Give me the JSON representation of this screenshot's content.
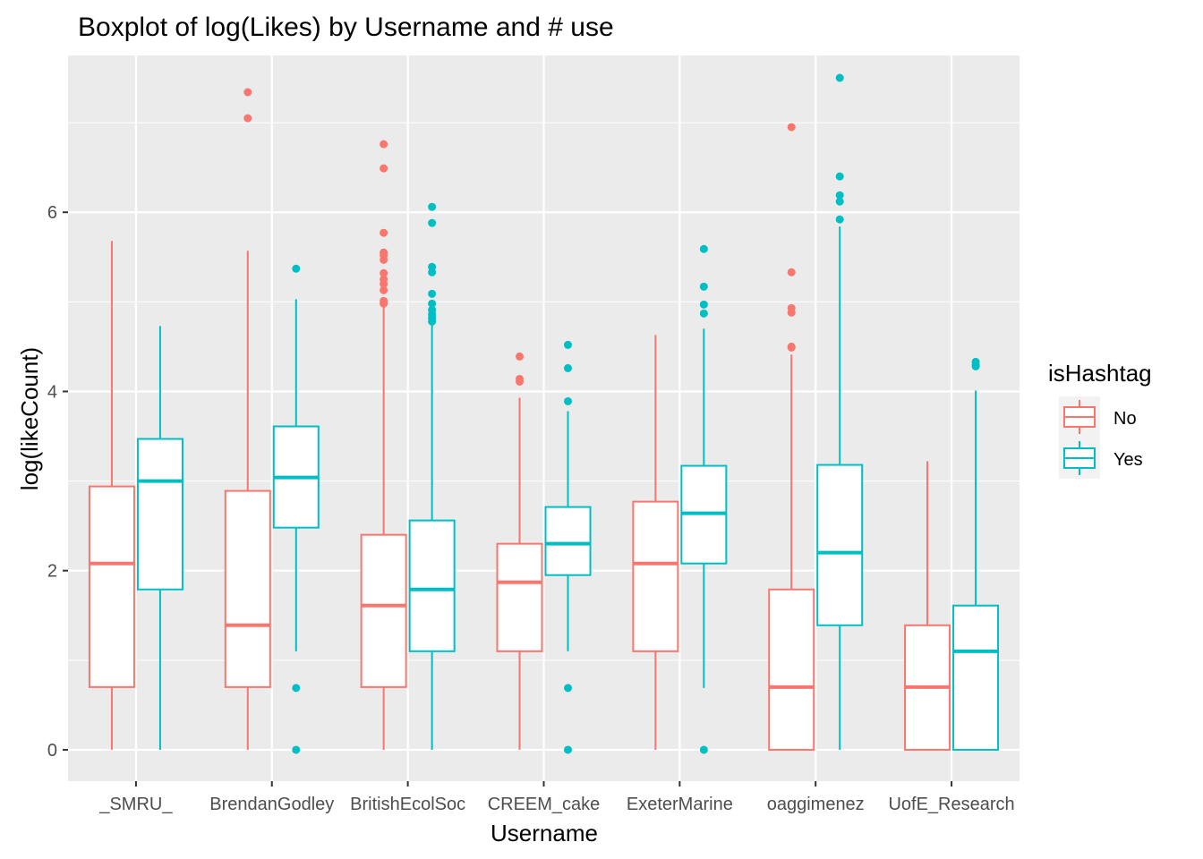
{
  "chart_data": {
    "type": "boxplot",
    "title": "Boxplot of  log(Likes) by Username and # use",
    "xlabel": "Username",
    "ylabel": "log(likeCount)",
    "ylim": [
      -0.35,
      7.75
    ],
    "yticks": [
      0,
      2,
      4,
      6
    ],
    "grid": true,
    "legend_position": "right",
    "legend_title": "isHashtag",
    "panel_background": "#EBEBEB",
    "categories": [
      "_SMRU_",
      "BrendanGodley",
      "BritishEcolSoc",
      "CREEM_cake",
      "ExeterMarine",
      "oaggimenez",
      "UofE_Research"
    ],
    "series": [
      {
        "name": "No",
        "color": "#F8766D",
        "boxes": [
          {
            "low": 0,
            "q1": 0.7,
            "median": 2.08,
            "q3": 2.94,
            "high": 5.68,
            "outliers": []
          },
          {
            "low": 0,
            "q1": 0.7,
            "median": 1.39,
            "q3": 2.89,
            "high": 5.57,
            "outliers": [
              7.05,
              7.34
            ]
          },
          {
            "low": 0,
            "q1": 0.7,
            "median": 1.61,
            "q3": 2.4,
            "high": 4.96,
            "outliers": [
              4.98,
              5.01,
              5.13,
              5.2,
              5.25,
              5.32,
              5.47,
              5.52,
              5.55,
              5.77,
              6.49,
              6.76
            ]
          },
          {
            "low": 0,
            "q1": 1.1,
            "median": 1.87,
            "q3": 2.3,
            "high": 3.93,
            "outliers": [
              4.11,
              4.14,
              4.39
            ]
          },
          {
            "low": 0,
            "q1": 1.1,
            "median": 2.08,
            "q3": 2.77,
            "high": 4.63,
            "outliers": []
          },
          {
            "low": 0,
            "q1": 0,
            "median": 0.7,
            "q3": 1.79,
            "high": 4.41,
            "outliers": [
              4.49,
              4.5,
              4.88,
              4.93,
              5.33,
              6.95
            ]
          },
          {
            "low": 0,
            "q1": 0,
            "median": 0.7,
            "q3": 1.39,
            "high": 3.22,
            "outliers": []
          }
        ]
      },
      {
        "name": "Yes",
        "color": "#00BFC4",
        "boxes": [
          {
            "low": 0,
            "q1": 1.79,
            "median": 3.0,
            "q3": 3.47,
            "high": 4.73,
            "outliers": []
          },
          {
            "low": 1.1,
            "q1": 2.48,
            "median": 3.04,
            "q3": 3.61,
            "high": 5.03,
            "outliers": [
              0,
              0.69,
              5.37
            ]
          },
          {
            "low": 0,
            "q1": 1.1,
            "median": 1.79,
            "q3": 2.56,
            "high": 4.74,
            "outliers": [
              4.78,
              4.82,
              4.86,
              4.91,
              4.98,
              5.09,
              5.33,
              5.39,
              5.88,
              6.06
            ]
          },
          {
            "low": 1.1,
            "q1": 1.95,
            "median": 2.3,
            "q3": 2.71,
            "high": 3.78,
            "outliers": [
              0,
              0.69,
              3.89,
              4.26,
              4.52
            ]
          },
          {
            "low": 0.69,
            "q1": 2.08,
            "median": 2.64,
            "q3": 3.17,
            "high": 4.7,
            "outliers": [
              0,
              4.87,
              4.97,
              5.17,
              5.59
            ]
          },
          {
            "low": 0,
            "q1": 1.39,
            "median": 2.2,
            "q3": 3.18,
            "high": 5.84,
            "outliers": [
              5.92,
              6.12,
              6.19,
              6.4,
              7.5
            ]
          },
          {
            "low": 0,
            "q1": 0,
            "median": 1.1,
            "q3": 1.61,
            "high": 4.01,
            "outliers": [
              4.28,
              4.3,
              4.33
            ]
          }
        ]
      }
    ]
  }
}
